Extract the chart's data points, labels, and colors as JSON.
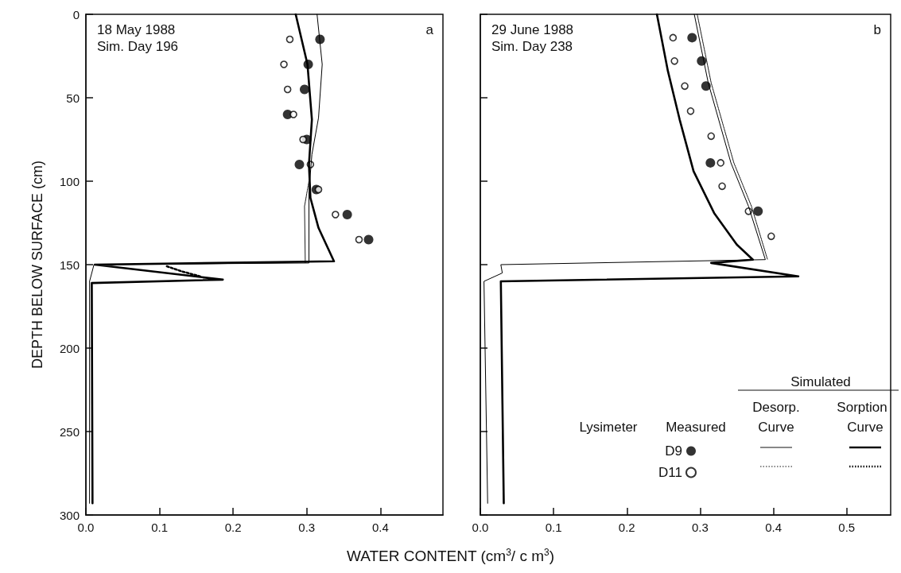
{
  "chart_data": [
    {
      "type": "scatter",
      "ylabel": "DEPTH BELOW SURFACE (cm)",
      "xlabel": "WATER CONTENT (cm$^{3}$/ c m$^{3}$)",
      "annotations": [
        "18 May 1988",
        "Sim. Day 196",
        "a"
      ],
      "xlim": [
        0,
        0.485
      ],
      "ylim": [
        300,
        0
      ],
      "xticks": [
        {
          "value": 0,
          "label": "0.0"
        },
        {
          "value": 0.1,
          "label": "0.1"
        },
        {
          "value": 0.2,
          "label": "0.2"
        },
        {
          "value": 0.3,
          "label": "0.3"
        },
        {
          "value": 0.4,
          "label": "0.4"
        }
      ],
      "yticks": [
        0,
        50,
        100,
        150,
        200,
        250,
        300
      ],
      "grid": false,
      "series": [
        {
          "color": "#000000",
          "marker": "circle",
          "x": [
            0.318,
            0.302,
            0.297,
            0.274,
            0.3,
            0.29,
            0.313,
            0.355,
            0.384
          ],
          "values": [
            15,
            30,
            45,
            60,
            75,
            90,
            105,
            120,
            135
          ]
        },
        {
          "color": "#000000",
          "marker": "circle",
          "x": [
            0.277,
            0.269,
            0.274,
            0.282,
            0.295,
            0.305,
            0.316,
            0.339,
            0.371
          ],
          "values": [
            15,
            30,
            45,
            60,
            75,
            90,
            105,
            120,
            135
          ]
        },
        {
          "type": "line",
          "color": "#000000",
          "line_style": "solid",
          "x": [
            0.314,
            0.321,
            0.316,
            0.307,
            0.303,
            0.303,
            0.011,
            0.005,
            0.005
          ],
          "values": [
            0,
            30,
            62,
            84,
            106,
            149,
            150,
            160,
            293
          ]
        },
        {
          "type": "line",
          "color": "#000000",
          "line_style": "dotted",
          "x": [
            0.303,
            0.297,
            0.298
          ],
          "values": [
            100,
            115,
            149
          ]
        },
        {
          "type": "line",
          "color": "#000000",
          "line_style": "solid",
          "x": [
            0.285,
            0.301,
            0.307,
            0.303,
            0.305,
            0.316,
            0.337,
            0.012,
            0.186,
            0.008,
            0.009
          ],
          "values": [
            0,
            30,
            63,
            90,
            110,
            128,
            148,
            150,
            159,
            161,
            293
          ]
        },
        {
          "type": "line",
          "color": "#000000",
          "line_style": "dotted",
          "x": [
            0.11,
            0.13,
            0.155
          ],
          "values": [
            151,
            154,
            157
          ]
        }
      ]
    },
    {
      "type": "scatter",
      "annotations": [
        "29 June 1988",
        "Sim. Day 238",
        "b",
        "Lysimeter",
        "Measured",
        "Simulated",
        "Desorp.",
        "Curve",
        "Sorption",
        "Curve"
      ],
      "xlim": [
        0,
        0.56
      ],
      "ylim": [
        300,
        0
      ],
      "tick_labels": "x",
      "legend": "bottom right",
      "xticks": [
        {
          "value": 0,
          "label": "0.0"
        },
        {
          "value": 0.1,
          "label": "0.1"
        },
        {
          "value": 0.2,
          "label": "0.2"
        },
        {
          "value": 0.3,
          "label": "0.3"
        },
        {
          "value": 0.4,
          "label": "0.4"
        },
        {
          "value": 0.5,
          "label": "0.5"
        }
      ],
      "yticks": [
        0,
        50,
        100,
        150,
        200,
        250,
        300
      ],
      "grid": false,
      "series": [
        {
          "name": "D9",
          "color": "#000000",
          "marker": "circle",
          "x": [
            0.289,
            0.302,
            0.308,
            0.314,
            0.379
          ],
          "values": [
            14,
            28,
            43,
            89,
            118
          ]
        },
        {
          "name": "D11",
          "color": "#000000",
          "marker": "circle",
          "x": [
            0.263,
            0.265,
            0.279,
            0.287,
            0.315,
            0.328,
            0.33,
            0.366,
            0.397
          ],
          "values": [
            14,
            28,
            43,
            58,
            73,
            89,
            103,
            118,
            133
          ]
        },
        {
          "type": "line",
          "color": "#000000",
          "line_style": "solid",
          "x": [
            0.292,
            0.311,
            0.342,
            0.366,
            0.389,
            0.028,
            0.03,
            0.005,
            0.01
          ],
          "values": [
            0,
            41,
            89,
            115,
            147,
            150,
            155,
            160,
            293
          ]
        },
        {
          "type": "line",
          "color": "#000000",
          "line_style": "dotted",
          "x": [
            0.296,
            0.315,
            0.346,
            0.37,
            0.392
          ],
          "values": [
            0,
            41,
            89,
            115,
            147
          ]
        },
        {
          "type": "line",
          "color": "#000000",
          "line_style": "solid",
          "x": [
            0.241,
            0.256,
            0.272,
            0.291,
            0.319,
            0.35,
            0.372,
            0.315,
            0.434,
            0.028,
            0.032
          ],
          "values": [
            0,
            34,
            63,
            94,
            119,
            138,
            147,
            149,
            157,
            160,
            293
          ]
        }
      ]
    }
  ]
}
